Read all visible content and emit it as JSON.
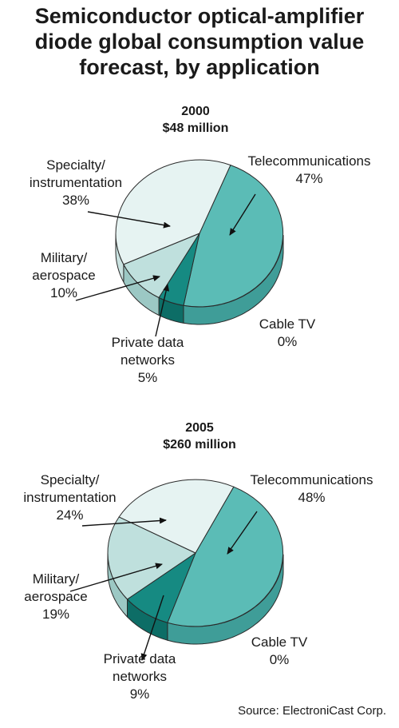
{
  "title_lines": [
    "Semiconductor optical-amplifier",
    "diode global consumption value",
    "forecast, by application"
  ],
  "source": "Source: ElectroniCast Corp.",
  "colors": {
    "telecommunications": "#5bbcb6",
    "telecommunications_side": "#3f9d98",
    "private_data_networks": "#168a82",
    "private_data_networks_side": "#0d6d66",
    "military_aerospace": "#bfe0dd",
    "military_aerospace_side": "#9cc8c4",
    "specialty_instrumentation": "#e6f3f2",
    "specialty_instrumentation_side": "#c9e2e0",
    "outline": "#2a2a2a"
  },
  "chart_data": [
    {
      "type": "pie",
      "year": "2000",
      "total": "$48 million",
      "slices": [
        {
          "key": "telecommunications",
          "label": [
            "Telecommunications",
            "47%"
          ],
          "value": 47
        },
        {
          "key": "cable_tv",
          "label": [
            "Cable TV",
            "0%"
          ],
          "value": 0
        },
        {
          "key": "private_data_networks",
          "label": [
            "Private data",
            "networks",
            "5%"
          ],
          "value": 5
        },
        {
          "key": "military_aerospace",
          "label": [
            "Military/",
            "aerospace",
            "10%"
          ],
          "value": 10
        },
        {
          "key": "specialty_instrumentation",
          "label": [
            "Specialty/",
            "instrumentation",
            "38%"
          ],
          "value": 38
        }
      ]
    },
    {
      "type": "pie",
      "year": "2005",
      "total": "$260 million",
      "slices": [
        {
          "key": "telecommunications",
          "label": [
            "Telecommunications",
            "48%"
          ],
          "value": 48
        },
        {
          "key": "cable_tv",
          "label": [
            "Cable TV",
            "0%"
          ],
          "value": 0
        },
        {
          "key": "private_data_networks",
          "label": [
            "Private data",
            "networks",
            "9%"
          ],
          "value": 9
        },
        {
          "key": "military_aerospace",
          "label": [
            "Military/",
            "aerospace",
            "19%"
          ],
          "value": 19
        },
        {
          "key": "specialty_instrumentation",
          "label": [
            "Specialty/",
            "instrumentation",
            "24%"
          ],
          "value": 24
        }
      ]
    }
  ]
}
